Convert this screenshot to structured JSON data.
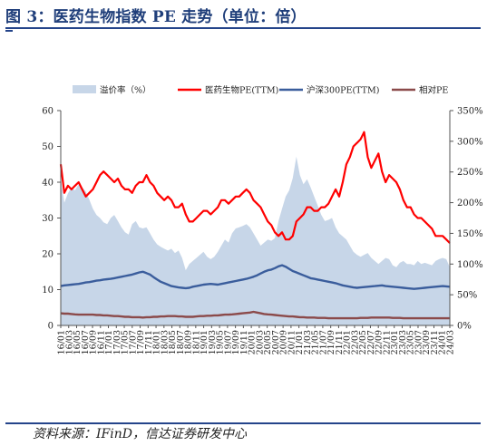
{
  "title": "图 3：医药生物指数 PE 走势（单位：倍）",
  "source": "资料来源：IFinD，信达证券研发中心",
  "chart_data": {
    "type": "line",
    "legend_position": "top",
    "x_tick_labels": [
      "16/01",
      "16/03",
      "16/05",
      "16/07",
      "16/09",
      "16/11",
      "17/01",
      "17/03",
      "17/05",
      "17/07",
      "17/09",
      "17/11",
      "18/01",
      "18/03",
      "18/05",
      "18/07",
      "18/09",
      "18/11",
      "19/01",
      "19/03",
      "19/05",
      "19/07",
      "19/09",
      "19/11",
      "20/01",
      "20/03",
      "20/05",
      "20/07",
      "20/09",
      "20/11",
      "21/01",
      "21/03",
      "21/05",
      "21/07",
      "21/09",
      "21/11",
      "22/01",
      "22/03",
      "22/05",
      "22/07",
      "22/09",
      "22/11",
      "23/01",
      "23/03",
      "23/05",
      "23/07",
      "23/09",
      "23/11",
      "24/01",
      "24/03"
    ],
    "y_left": {
      "min": 0,
      "max": 60,
      "ticks": [
        "0",
        "10",
        "20",
        "30",
        "40",
        "50",
        "60"
      ]
    },
    "y_right": {
      "min": 0,
      "max": 350,
      "ticks": [
        "0%",
        "50%",
        "100%",
        "150%",
        "200%",
        "250%",
        "300%",
        "350%"
      ]
    },
    "series": [
      {
        "name": "溢价率（%）",
        "type": "area",
        "axis": "right",
        "color": "#c7d6e8",
        "values": [
          240,
          200,
          215,
          225,
          220,
          230,
          225,
          218,
          205,
          190,
          180,
          175,
          168,
          165,
          175,
          180,
          170,
          160,
          152,
          148,
          165,
          170,
          160,
          158,
          160,
          150,
          140,
          132,
          128,
          125,
          122,
          125,
          118,
          122,
          110,
          90,
          100,
          105,
          110,
          115,
          120,
          112,
          108,
          112,
          120,
          130,
          140,
          135,
          150,
          158,
          160,
          162,
          165,
          160,
          150,
          140,
          130,
          135,
          140,
          138,
          142,
          170,
          190,
          210,
          220,
          240,
          275,
          245,
          230,
          238,
          225,
          210,
          195,
          180,
          170,
          172,
          175,
          160,
          150,
          145,
          140,
          130,
          120,
          115,
          112,
          115,
          118,
          110,
          105,
          100,
          105,
          110,
          108,
          98,
          95,
          102,
          105,
          100,
          100,
          98,
          105,
          100,
          102,
          100,
          98,
          105,
          108,
          110,
          108,
          95
        ]
      },
      {
        "name": "医药生物PE(TTM)",
        "type": "line",
        "axis": "left",
        "color": "#ff0000",
        "values": [
          45,
          37,
          39,
          38,
          39,
          40,
          38,
          36,
          37,
          38,
          40,
          42,
          43,
          42,
          41,
          40,
          41,
          39,
          38,
          38,
          37,
          39,
          40,
          40,
          42,
          40,
          39,
          37,
          36,
          35,
          36,
          35,
          33,
          33,
          34,
          31,
          29,
          29,
          30,
          31,
          32,
          32,
          31,
          32,
          33,
          35,
          35,
          34,
          35,
          36,
          36,
          37,
          38,
          37,
          35,
          34,
          33,
          31,
          29,
          28,
          26,
          25,
          26,
          24,
          24,
          25,
          29,
          30,
          31,
          33,
          33,
          32,
          32,
          33,
          33,
          34,
          36,
          38,
          36,
          40,
          45,
          47,
          50,
          51,
          52,
          54,
          47,
          44,
          46,
          48,
          43,
          40,
          42,
          41,
          40,
          38,
          35,
          33,
          33,
          31,
          30,
          30,
          29,
          28,
          27,
          25,
          25,
          25,
          24,
          23
        ]
      },
      {
        "name": "沪深300PE(TTM)",
        "type": "line",
        "axis": "left",
        "color": "#3a5d9c",
        "values": [
          11.0,
          11.2,
          11.3,
          11.4,
          11.5,
          11.6,
          11.8,
          12.0,
          12.1,
          12.3,
          12.5,
          12.6,
          12.8,
          12.9,
          13.0,
          13.2,
          13.4,
          13.6,
          13.8,
          14.0,
          14.2,
          14.5,
          14.8,
          15.0,
          14.6,
          14.2,
          13.5,
          12.8,
          12.2,
          11.8,
          11.4,
          11.0,
          10.8,
          10.6,
          10.5,
          10.4,
          10.5,
          10.8,
          11.0,
          11.2,
          11.4,
          11.5,
          11.6,
          11.5,
          11.4,
          11.6,
          11.8,
          12.0,
          12.2,
          12.4,
          12.6,
          12.8,
          13.0,
          13.3,
          13.6,
          14.0,
          14.5,
          15.0,
          15.4,
          15.6,
          16.0,
          16.5,
          16.8,
          16.4,
          15.8,
          15.2,
          14.8,
          14.4,
          14.0,
          13.6,
          13.2,
          13.0,
          12.8,
          12.6,
          12.4,
          12.2,
          12.0,
          11.8,
          11.5,
          11.2,
          11.0,
          10.8,
          10.6,
          10.5,
          10.6,
          10.7,
          10.8,
          10.9,
          11.0,
          11.1,
          11.2,
          11.0,
          10.9,
          10.8,
          10.7,
          10.6,
          10.5,
          10.4,
          10.3,
          10.2,
          10.3,
          10.4,
          10.5,
          10.6,
          10.7,
          10.8,
          10.9,
          11.0,
          10.9,
          10.8
        ]
      },
      {
        "name": "相对PE",
        "type": "line",
        "axis": "left",
        "color": "#8b4a4a",
        "values": [
          3.4,
          3.3,
          3.3,
          3.2,
          3.1,
          3.0,
          3.0,
          3.0,
          3.0,
          3.0,
          2.9,
          2.9,
          2.8,
          2.8,
          2.7,
          2.6,
          2.6,
          2.5,
          2.4,
          2.4,
          2.3,
          2.3,
          2.3,
          2.2,
          2.3,
          2.3,
          2.4,
          2.4,
          2.5,
          2.5,
          2.6,
          2.6,
          2.6,
          2.5,
          2.5,
          2.4,
          2.4,
          2.4,
          2.5,
          2.6,
          2.6,
          2.7,
          2.7,
          2.8,
          2.8,
          2.9,
          3.0,
          3.0,
          3.1,
          3.2,
          3.3,
          3.4,
          3.5,
          3.6,
          3.8,
          3.6,
          3.4,
          3.2,
          3.1,
          3.0,
          2.9,
          2.8,
          2.7,
          2.6,
          2.5,
          2.5,
          2.4,
          2.3,
          2.3,
          2.2,
          2.2,
          2.2,
          2.1,
          2.1,
          2.1,
          2.0,
          2.0,
          2.0,
          2.0,
          2.0,
          2.0,
          2.0,
          2.0,
          2.0,
          2.1,
          2.1,
          2.1,
          2.2,
          2.2,
          2.2,
          2.2,
          2.2,
          2.2,
          2.1,
          2.1,
          2.1,
          2.0,
          2.0,
          2.0,
          2.0,
          2.0,
          2.0,
          2.0,
          2.0,
          2.0,
          2.0,
          2.0,
          2.0,
          2.0,
          2.0
        ]
      }
    ]
  }
}
